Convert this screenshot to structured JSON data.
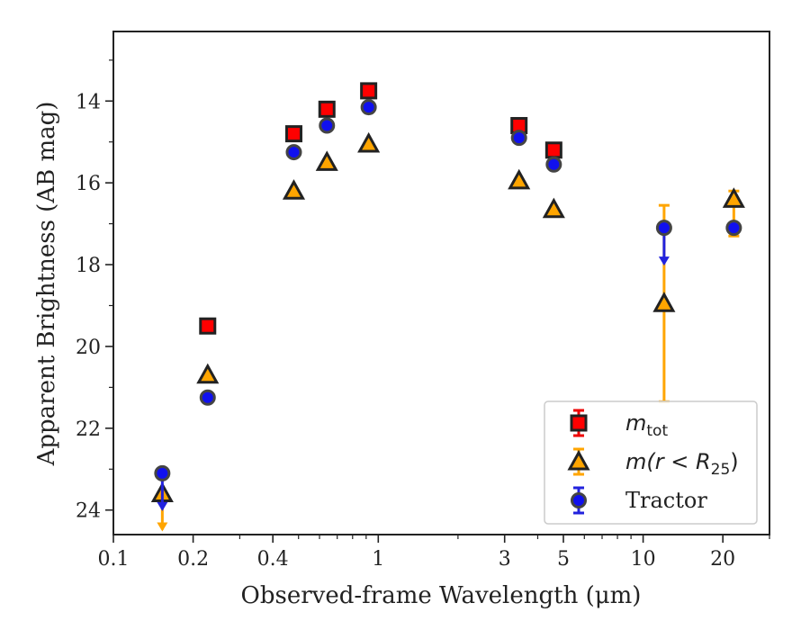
{
  "chart_data": {
    "type": "scatter",
    "title": "",
    "xlabel": "Observed-frame Wavelength (μm)",
    "ylabel": "Apparent Brightness (AB mag)",
    "xscale": "log",
    "xlim": [
      0.1,
      30
    ],
    "ylim": [
      24.6,
      12.3
    ],
    "y_inverted": true,
    "xticks": [
      0.1,
      0.2,
      0.4,
      1,
      3,
      5,
      10,
      20
    ],
    "xtick_labels": [
      "0.1",
      "0.2",
      "0.4",
      "1",
      "3",
      "5",
      "10",
      "20"
    ],
    "yticks": [
      14,
      16,
      18,
      20,
      22,
      24
    ],
    "ytick_labels": [
      "14",
      "16",
      "18",
      "20",
      "22",
      "24"
    ],
    "grid": false,
    "legend": {
      "placement": "bottom-right",
      "entries": [
        {
          "label": "m",
          "sub": "tot",
          "marker": "square"
        },
        {
          "label": "m(r < R",
          "sub": "25",
          "suffix": ")",
          "marker": "triangle"
        },
        {
          "label": "Tractor",
          "marker": "circle"
        }
      ]
    },
    "series": [
      {
        "marker": "square",
        "color": "#ff0000",
        "edge": "#222222",
        "points": [
          {
            "x": 0.227,
            "y": 19.5
          },
          {
            "x": 0.48,
            "y": 14.8
          },
          {
            "x": 0.64,
            "y": 14.2
          },
          {
            "x": 0.92,
            "y": 13.75
          },
          {
            "x": 3.4,
            "y": 14.6
          },
          {
            "x": 4.6,
            "y": 15.2
          }
        ]
      },
      {
        "marker": "triangle",
        "color": "#ffa500",
        "edge": "#222222",
        "points": [
          {
            "x": 0.153,
            "y": 23.6,
            "upper_limit": true
          },
          {
            "x": 0.227,
            "y": 20.7
          },
          {
            "x": 0.48,
            "y": 16.2
          },
          {
            "x": 0.64,
            "y": 15.5
          },
          {
            "x": 0.92,
            "y": 15.05
          },
          {
            "x": 3.4,
            "y": 15.95
          },
          {
            "x": 4.6,
            "y": 16.65
          },
          {
            "x": 12.0,
            "y": 18.95,
            "yerr_low": 16.55,
            "yerr_high": 21.35
          },
          {
            "x": 22.0,
            "y": 16.4,
            "yerr_low": 16.2,
            "yerr_high": 17.3
          }
        ]
      },
      {
        "marker": "circle",
        "color": "#1010ee",
        "edge": "#444444",
        "points": [
          {
            "x": 0.153,
            "y": 23.1,
            "upper_limit": true
          },
          {
            "x": 0.227,
            "y": 21.25
          },
          {
            "x": 0.48,
            "y": 15.25
          },
          {
            "x": 0.64,
            "y": 14.6
          },
          {
            "x": 0.92,
            "y": 14.15
          },
          {
            "x": 3.4,
            "y": 14.9
          },
          {
            "x": 4.6,
            "y": 15.55
          },
          {
            "x": 12.0,
            "y": 17.1,
            "upper_limit": true
          },
          {
            "x": 22.0,
            "y": 17.1
          }
        ]
      }
    ]
  }
}
